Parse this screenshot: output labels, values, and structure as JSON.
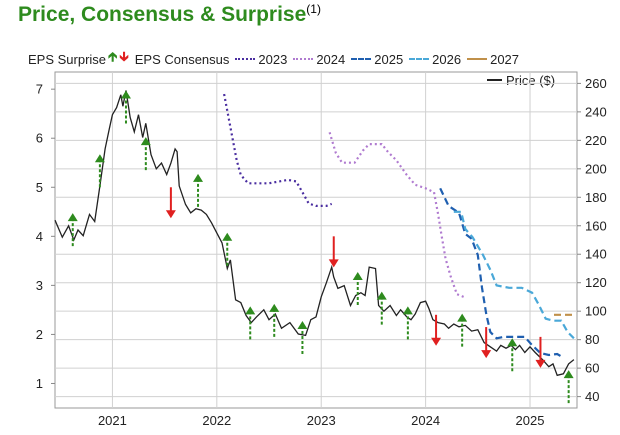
{
  "header": {
    "title": "Price, Consensus & Surprise",
    "footnote": "(1)"
  },
  "legend": {
    "eps_surprise": "EPS Surprise",
    "eps_consensus": "EPS Consensus",
    "price": "Price ($)",
    "up_arrow_color": "#2e8b1e",
    "down_arrow_color": "#e02020"
  },
  "colors": {
    "title": "#2e8b1e",
    "price_line": "#222222",
    "plot_background": "#ffffff",
    "grid": "#d0d0d0"
  },
  "chart_data": {
    "type": "line",
    "x_ticks": [
      "2021",
      "2022",
      "2023",
      "2024",
      "2025"
    ],
    "x_range": [
      2020.45,
      2025.45
    ],
    "left_axis": {
      "label": "",
      "ticks": [
        1,
        2,
        3,
        4,
        5,
        6,
        7
      ],
      "range": [
        0.5,
        7.35
      ]
    },
    "right_axis": {
      "label": "Price ($)",
      "ticks": [
        40,
        60,
        80,
        100,
        120,
        140,
        160,
        180,
        200,
        220,
        240,
        260
      ],
      "range": [
        32,
        268
      ]
    },
    "grid": true,
    "legend_placement": "top",
    "price_series": {
      "name": "Price ($)",
      "color": "#222222",
      "points": [
        [
          2020.45,
          164
        ],
        [
          2020.52,
          152
        ],
        [
          2020.58,
          160
        ],
        [
          2020.63,
          150
        ],
        [
          2020.67,
          157
        ],
        [
          2020.72,
          153
        ],
        [
          2020.78,
          168
        ],
        [
          2020.83,
          163
        ],
        [
          2020.88,
          188
        ],
        [
          2020.93,
          214
        ],
        [
          2020.97,
          228
        ],
        [
          2021.0,
          238
        ],
        [
          2021.04,
          243
        ],
        [
          2021.08,
          252
        ],
        [
          2021.1,
          244
        ],
        [
          2021.13,
          255
        ],
        [
          2021.17,
          236
        ],
        [
          2021.21,
          226
        ],
        [
          2021.25,
          238
        ],
        [
          2021.29,
          222
        ],
        [
          2021.32,
          232
        ],
        [
          2021.37,
          210
        ],
        [
          2021.42,
          200
        ],
        [
          2021.47,
          204
        ],
        [
          2021.52,
          196
        ],
        [
          2021.56,
          204
        ],
        [
          2021.6,
          214
        ],
        [
          2021.62,
          212
        ],
        [
          2021.64,
          188
        ],
        [
          2021.7,
          175
        ],
        [
          2021.75,
          169
        ],
        [
          2021.8,
          172
        ],
        [
          2021.85,
          171
        ],
        [
          2021.9,
          168
        ],
        [
          2021.95,
          162
        ],
        [
          2022.0,
          155
        ],
        [
          2022.05,
          148
        ],
        [
          2022.1,
          130
        ],
        [
          2022.13,
          136
        ],
        [
          2022.18,
          108
        ],
        [
          2022.23,
          106
        ],
        [
          2022.28,
          97
        ],
        [
          2022.33,
          92
        ],
        [
          2022.38,
          96
        ],
        [
          2022.45,
          101
        ],
        [
          2022.5,
          94
        ],
        [
          2022.56,
          98
        ],
        [
          2022.62,
          88
        ],
        [
          2022.7,
          92
        ],
        [
          2022.78,
          84
        ],
        [
          2022.85,
          83
        ],
        [
          2022.9,
          94
        ],
        [
          2022.95,
          96
        ],
        [
          2023.0,
          110
        ],
        [
          2023.05,
          120
        ],
        [
          2023.1,
          131
        ],
        [
          2023.12,
          124
        ],
        [
          2023.16,
          116
        ],
        [
          2023.22,
          118
        ],
        [
          2023.28,
          104
        ],
        [
          2023.33,
          111
        ],
        [
          2023.38,
          113
        ],
        [
          2023.42,
          111
        ],
        [
          2023.46,
          131
        ],
        [
          2023.52,
          130
        ],
        [
          2023.55,
          104
        ],
        [
          2023.6,
          100
        ],
        [
          2023.66,
          104
        ],
        [
          2023.72,
          97
        ],
        [
          2023.76,
          101
        ],
        [
          2023.82,
          96
        ],
        [
          2023.86,
          94
        ],
        [
          2023.9,
          98
        ],
        [
          2023.95,
          106
        ],
        [
          2024.0,
          107
        ],
        [
          2024.03,
          102
        ],
        [
          2024.07,
          94
        ],
        [
          2024.12,
          92
        ],
        [
          2024.18,
          91
        ],
        [
          2024.22,
          88
        ],
        [
          2024.27,
          91
        ],
        [
          2024.32,
          89
        ],
        [
          2024.38,
          90
        ],
        [
          2024.44,
          86
        ],
        [
          2024.5,
          87
        ],
        [
          2024.56,
          78
        ],
        [
          2024.62,
          75
        ],
        [
          2024.68,
          72
        ],
        [
          2024.72,
          76
        ],
        [
          2024.77,
          74
        ],
        [
          2024.82,
          76
        ],
        [
          2024.86,
          73
        ],
        [
          2024.9,
          76
        ],
        [
          2024.95,
          71
        ],
        [
          2025.0,
          75
        ],
        [
          2025.05,
          71
        ],
        [
          2025.12,
          66
        ],
        [
          2025.18,
          61
        ],
        [
          2025.22,
          63
        ],
        [
          2025.26,
          55
        ],
        [
          2025.32,
          56
        ],
        [
          2025.37,
          63
        ],
        [
          2025.42,
          66
        ]
      ]
    },
    "consensus_series": [
      {
        "name": "2023",
        "color": "#4a2ea0",
        "style": "dotted",
        "points": [
          [
            2022.07,
            6.9
          ],
          [
            2022.11,
            6.45
          ],
          [
            2022.15,
            6.0
          ],
          [
            2022.19,
            5.55
          ],
          [
            2022.23,
            5.25
          ],
          [
            2022.3,
            5.08
          ],
          [
            2022.38,
            5.08
          ],
          [
            2022.5,
            5.08
          ],
          [
            2022.6,
            5.12
          ],
          [
            2022.68,
            5.15
          ],
          [
            2022.76,
            5.12
          ],
          [
            2022.82,
            4.9
          ],
          [
            2022.88,
            4.67
          ],
          [
            2022.95,
            4.62
          ],
          [
            2023.05,
            4.62
          ],
          [
            2023.1,
            4.66
          ]
        ]
      },
      {
        "name": "2024",
        "color": "#b07bd0",
        "style": "dotted",
        "points": [
          [
            2023.08,
            6.12
          ],
          [
            2023.14,
            5.7
          ],
          [
            2023.2,
            5.5
          ],
          [
            2023.32,
            5.5
          ],
          [
            2023.4,
            5.75
          ],
          [
            2023.46,
            5.88
          ],
          [
            2023.58,
            5.88
          ],
          [
            2023.64,
            5.72
          ],
          [
            2023.72,
            5.55
          ],
          [
            2023.82,
            5.25
          ],
          [
            2023.9,
            5.05
          ],
          [
            2024.0,
            4.98
          ],
          [
            2024.08,
            4.9
          ],
          [
            2024.12,
            4.45
          ],
          [
            2024.15,
            4.05
          ],
          [
            2024.19,
            3.55
          ],
          [
            2024.24,
            3.18
          ],
          [
            2024.3,
            2.82
          ],
          [
            2024.38,
            2.75
          ]
        ]
      },
      {
        "name": "2025",
        "color": "#1f5fb0",
        "style": "dashed",
        "points": [
          [
            2024.14,
            4.98
          ],
          [
            2024.22,
            4.62
          ],
          [
            2024.32,
            4.48
          ],
          [
            2024.38,
            4.05
          ],
          [
            2024.44,
            3.95
          ],
          [
            2024.5,
            3.62
          ],
          [
            2024.54,
            2.95
          ],
          [
            2024.58,
            2.42
          ],
          [
            2024.62,
            2.05
          ],
          [
            2024.68,
            1.92
          ],
          [
            2024.75,
            1.95
          ],
          [
            2024.85,
            1.95
          ],
          [
            2024.95,
            1.95
          ],
          [
            2025.02,
            1.78
          ],
          [
            2025.1,
            1.62
          ],
          [
            2025.18,
            1.58
          ],
          [
            2025.26,
            1.6
          ],
          [
            2025.3,
            1.55
          ]
        ]
      },
      {
        "name": "2026",
        "color": "#4aa8d8",
        "style": "dashed",
        "points": [
          [
            2024.27,
            4.5
          ],
          [
            2024.34,
            4.5
          ],
          [
            2024.38,
            4.15
          ],
          [
            2024.45,
            3.98
          ],
          [
            2024.55,
            3.62
          ],
          [
            2024.62,
            3.32
          ],
          [
            2024.68,
            3.0
          ],
          [
            2024.8,
            2.95
          ],
          [
            2024.92,
            2.95
          ],
          [
            2025.02,
            2.85
          ],
          [
            2025.08,
            2.62
          ],
          [
            2025.15,
            2.32
          ],
          [
            2025.22,
            2.28
          ],
          [
            2025.3,
            2.28
          ],
          [
            2025.36,
            2.05
          ],
          [
            2025.42,
            1.92
          ]
        ]
      },
      {
        "name": "2027",
        "color": "#c0904a",
        "style": "dashed",
        "points": [
          [
            2025.23,
            2.4
          ],
          [
            2025.42,
            2.4
          ]
        ]
      }
    ],
    "eps_surprises": [
      {
        "x": 2020.62,
        "value": 3.8,
        "direction": "up"
      },
      {
        "x": 2020.88,
        "value": 5.0,
        "direction": "up"
      },
      {
        "x": 2021.13,
        "value": 6.3,
        "direction": "up"
      },
      {
        "x": 2021.32,
        "value": 5.35,
        "direction": "up"
      },
      {
        "x": 2021.56,
        "value": 5.0,
        "direction": "down"
      },
      {
        "x": 2021.82,
        "value": 4.6,
        "direction": "up"
      },
      {
        "x": 2022.1,
        "value": 3.4,
        "direction": "up"
      },
      {
        "x": 2022.32,
        "value": 1.9,
        "direction": "up"
      },
      {
        "x": 2022.55,
        "value": 1.95,
        "direction": "up"
      },
      {
        "x": 2022.82,
        "value": 1.6,
        "direction": "up"
      },
      {
        "x": 2023.12,
        "value": 4.0,
        "direction": "down"
      },
      {
        "x": 2023.35,
        "value": 2.6,
        "direction": "up"
      },
      {
        "x": 2023.58,
        "value": 2.2,
        "direction": "up"
      },
      {
        "x": 2023.83,
        "value": 1.9,
        "direction": "up"
      },
      {
        "x": 2024.1,
        "value": 2.4,
        "direction": "down"
      },
      {
        "x": 2024.35,
        "value": 1.75,
        "direction": "up"
      },
      {
        "x": 2024.58,
        "value": 2.15,
        "direction": "down"
      },
      {
        "x": 2024.83,
        "value": 1.25,
        "direction": "up"
      },
      {
        "x": 2025.1,
        "value": 1.95,
        "direction": "down"
      },
      {
        "x": 2025.37,
        "value": 0.6,
        "direction": "up"
      }
    ]
  }
}
